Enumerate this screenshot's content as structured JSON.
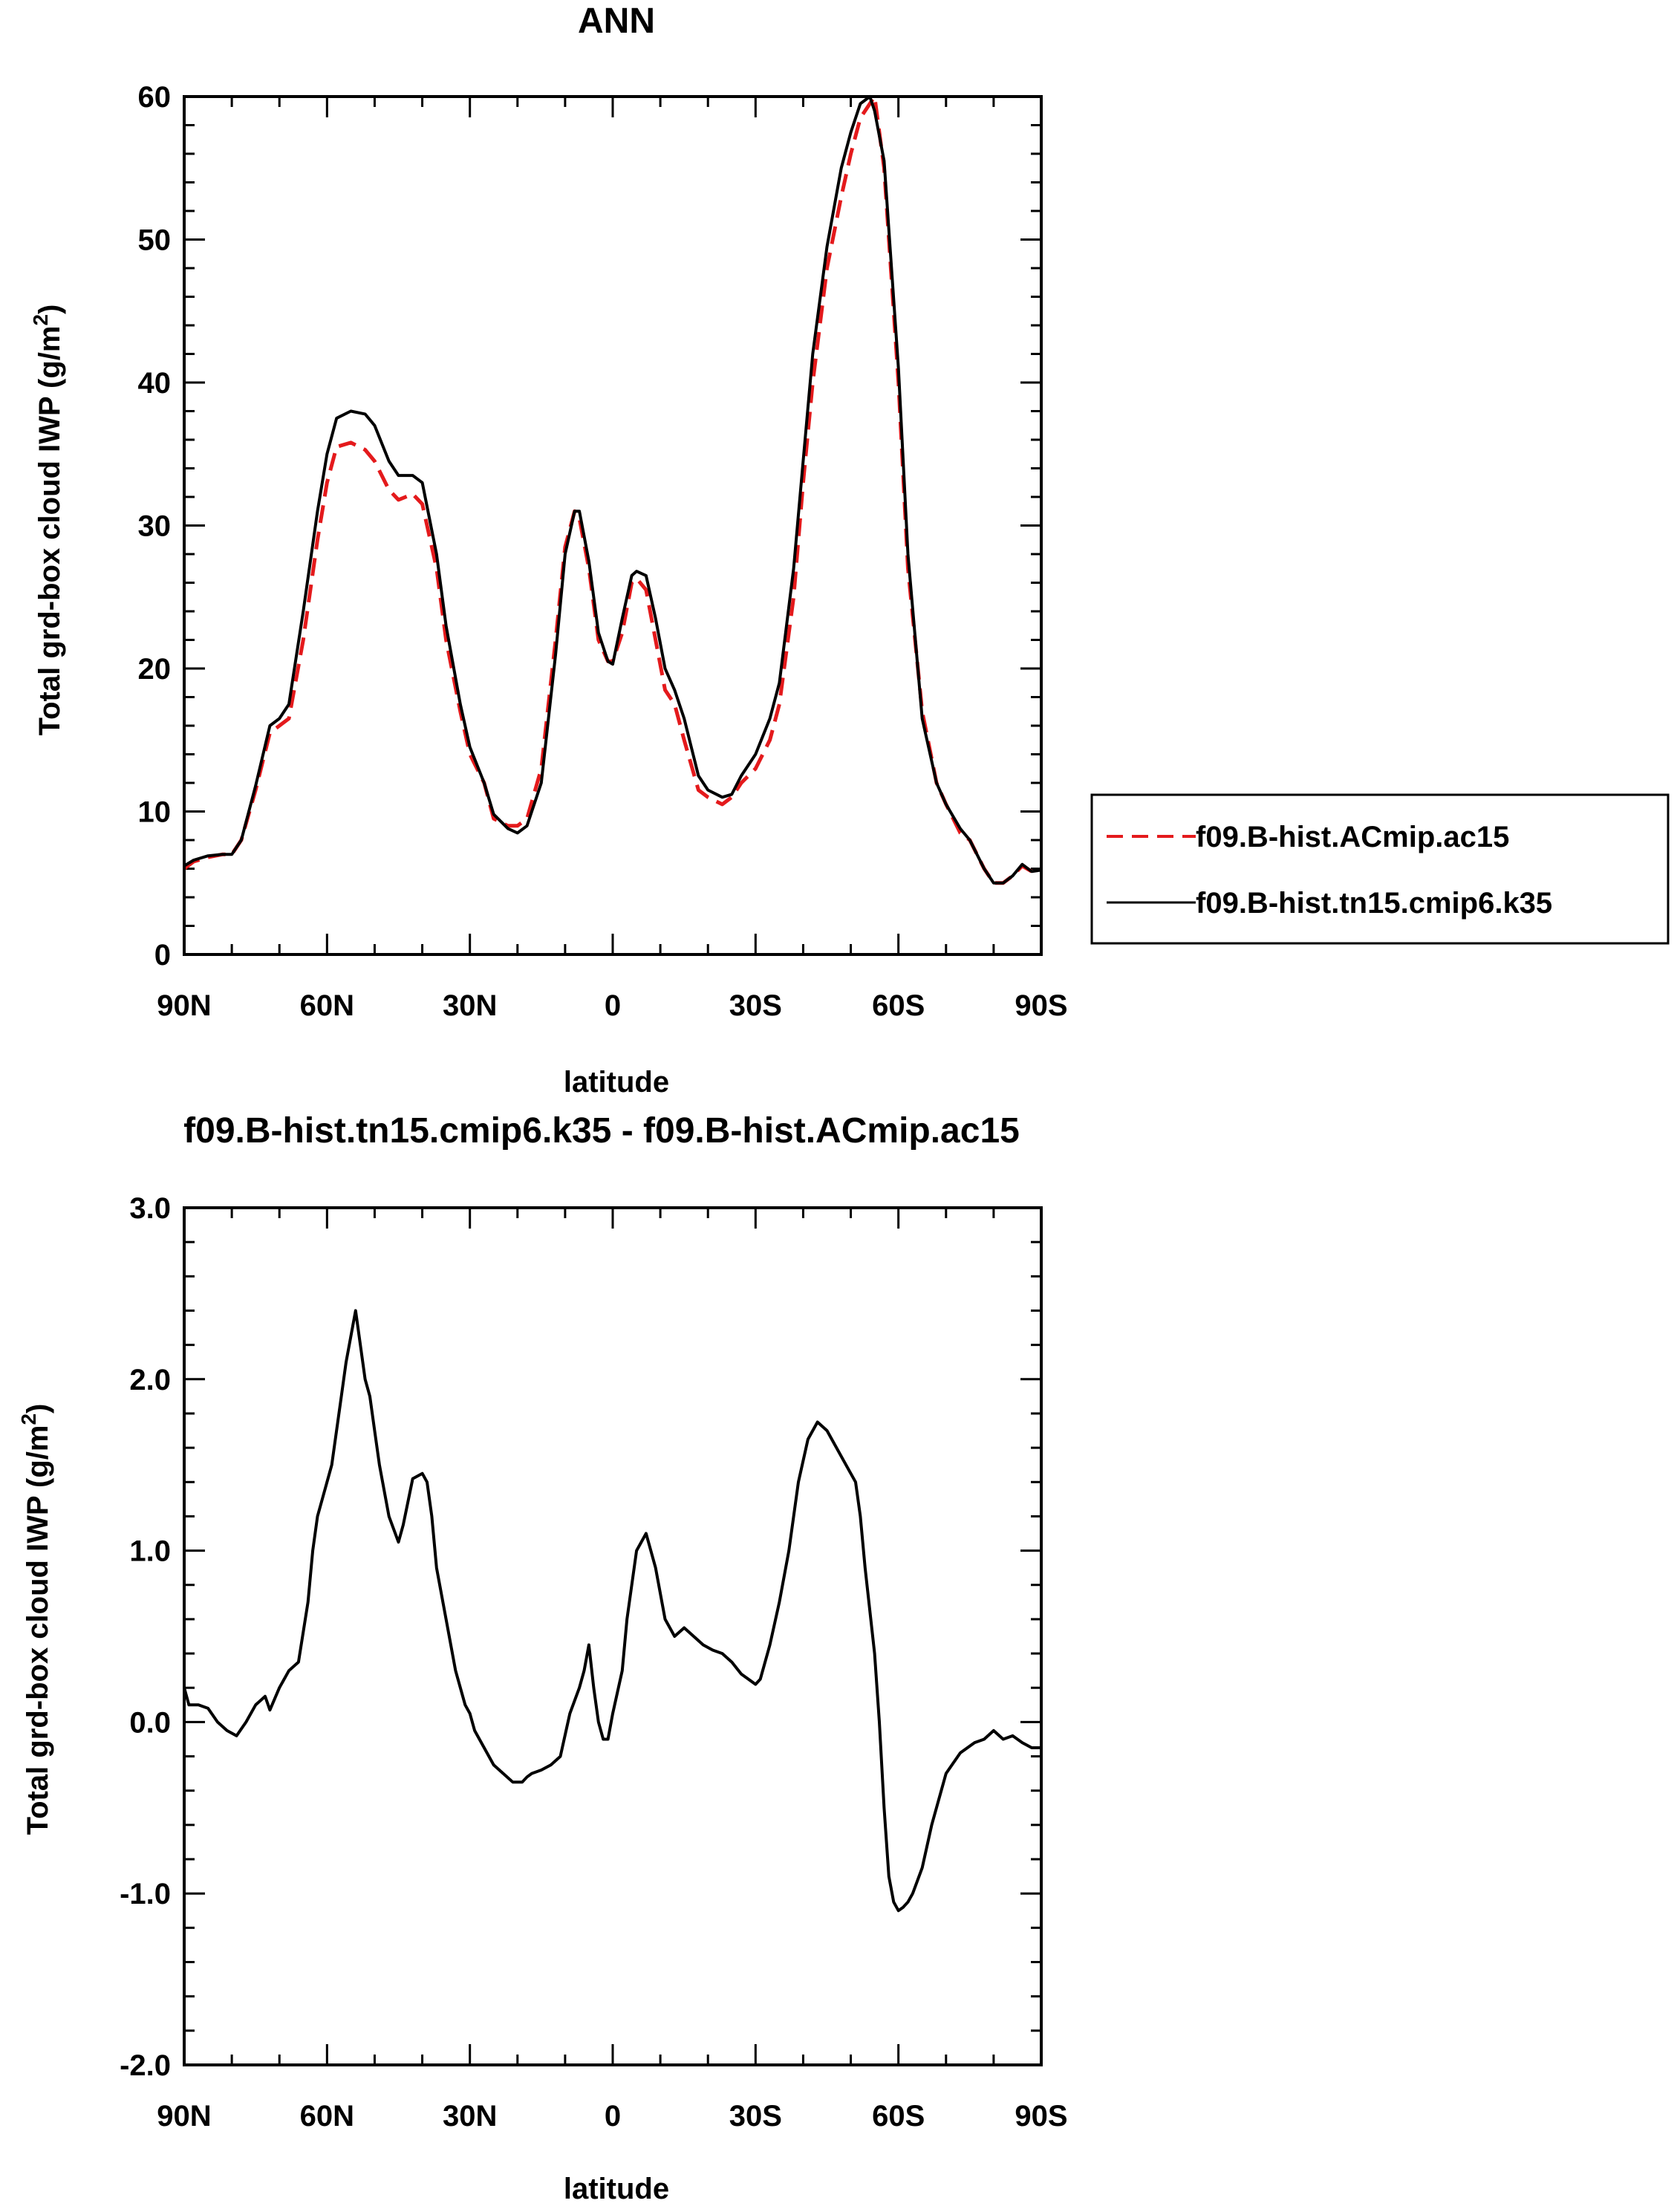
{
  "chart_data": [
    {
      "type": "line",
      "title": "ANN",
      "xlabel": "latitude",
      "ylabel_prefix": "Total grd-box cloud IWP (g/m",
      "ylabel_sup": "2",
      "ylabel_suffix": ")",
      "ylim": [
        0,
        60
      ],
      "xlim": [
        -90,
        90
      ],
      "x_ticks": [
        -90,
        -60,
        -30,
        0,
        30,
        60,
        90
      ],
      "x_tick_labels": [
        "90N",
        "60N",
        "30N",
        "0",
        "30S",
        "60S",
        "90S"
      ],
      "y_ticks": [
        0,
        10,
        20,
        30,
        40,
        50,
        60
      ],
      "y_tick_labels": [
        "0",
        "10",
        "20",
        "30",
        "40",
        "50",
        "60"
      ],
      "legend": {
        "placement": "outside-right"
      },
      "series": [
        {
          "name": "f09.B-hist.ACmip.ac15",
          "color": "#e41a1c",
          "dash": "dashed",
          "x": [
            -90,
            -88,
            -85,
            -82,
            -80,
            -78,
            -75,
            -72,
            -70,
            -68,
            -65,
            -62,
            -60,
            -58,
            -55,
            -52,
            -50,
            -47,
            -45,
            -42,
            -40,
            -37,
            -35,
            -32,
            -30,
            -27,
            -25,
            -22,
            -20,
            -18,
            -15,
            -12,
            -10,
            -8,
            -7,
            -5,
            -3,
            -1,
            0,
            2,
            4,
            5,
            7,
            9,
            11,
            13,
            15,
            18,
            20,
            23,
            25,
            27,
            30,
            33,
            35,
            38,
            40,
            42,
            45,
            48,
            50,
            52,
            54,
            55,
            57,
            60,
            62,
            65,
            68,
            70,
            73,
            75,
            78,
            80,
            82,
            84,
            86,
            88,
            90
          ],
          "y": [
            6.0,
            6.5,
            6.8,
            7.0,
            7.0,
            8.0,
            11.5,
            15.5,
            16.0,
            16.5,
            22.0,
            29.0,
            33.0,
            35.5,
            35.8,
            35.3,
            34.5,
            32.5,
            31.8,
            32.2,
            31.5,
            27.0,
            22.0,
            17.0,
            14.0,
            12.0,
            9.5,
            9.0,
            9.0,
            9.5,
            13.0,
            22.0,
            28.5,
            31.0,
            30.5,
            27.0,
            22.0,
            20.5,
            20.5,
            22.5,
            26.0,
            26.3,
            25.5,
            22.0,
            18.5,
            17.5,
            15.0,
            11.5,
            11.0,
            10.5,
            11.0,
            12.0,
            13.0,
            15.0,
            17.5,
            25.0,
            33.0,
            40.0,
            48.0,
            53.0,
            56.0,
            58.5,
            59.5,
            60.0,
            55.0,
            40.0,
            27.0,
            17.0,
            12.0,
            10.5,
            8.5,
            8.0,
            6.0,
            5.0,
            5.0,
            5.5,
            6.2,
            5.8,
            5.8
          ]
        },
        {
          "name": "f09.B-hist.tn15.cmip6.k35",
          "color": "#000000",
          "dash": "solid",
          "x": [
            -90,
            -88,
            -85,
            -82,
            -80,
            -78,
            -75,
            -72,
            -70,
            -68,
            -65,
            -62,
            -60,
            -58,
            -55,
            -52,
            -50,
            -47,
            -45,
            -42,
            -40,
            -37,
            -35,
            -32,
            -30,
            -27,
            -25,
            -22,
            -20,
            -18,
            -15,
            -12,
            -10,
            -8,
            -7,
            -5,
            -3,
            -1,
            0,
            2,
            4,
            5,
            7,
            9,
            11,
            13,
            15,
            18,
            20,
            23,
            25,
            27,
            30,
            33,
            35,
            38,
            40,
            42,
            45,
            48,
            50,
            52,
            54,
            55,
            57,
            60,
            62,
            65,
            68,
            70,
            73,
            75,
            78,
            80,
            82,
            84,
            86,
            88,
            90
          ],
          "y": [
            6.2,
            6.6,
            6.9,
            7.0,
            7.0,
            8.0,
            11.8,
            16.0,
            16.5,
            17.5,
            24.0,
            31.0,
            35.0,
            37.5,
            38.0,
            37.8,
            37.0,
            34.5,
            33.5,
            33.5,
            33.0,
            28.0,
            23.0,
            17.5,
            14.5,
            12.0,
            9.8,
            8.8,
            8.5,
            9.0,
            12.0,
            21.0,
            28.0,
            31.0,
            31.0,
            27.5,
            22.5,
            20.5,
            20.3,
            23.5,
            26.5,
            26.8,
            26.5,
            23.5,
            20.0,
            18.5,
            16.5,
            12.5,
            11.5,
            11.0,
            11.2,
            12.5,
            14.0,
            16.5,
            19.0,
            27.0,
            34.5,
            42.0,
            49.5,
            55.0,
            57.5,
            59.5,
            60.0,
            59.0,
            55.5,
            41.0,
            28.0,
            16.5,
            12.0,
            10.5,
            8.8,
            8.0,
            6.0,
            5.0,
            5.0,
            5.5,
            6.3,
            5.8,
            5.9
          ]
        }
      ]
    },
    {
      "type": "line",
      "title": "f09.B-hist.tn15.cmip6.k35 - f09.B-hist.ACmip.ac15",
      "xlabel": "latitude",
      "ylabel_prefix": "Total grd-box cloud IWP (g/m",
      "ylabel_sup": "2",
      "ylabel_suffix": ")",
      "ylim": [
        -2.0,
        3.0
      ],
      "xlim": [
        -90,
        90
      ],
      "x_ticks": [
        -90,
        -60,
        -30,
        0,
        30,
        60,
        90
      ],
      "x_tick_labels": [
        "90N",
        "60N",
        "30N",
        "0",
        "30S",
        "60S",
        "90S"
      ],
      "y_ticks": [
        -2.0,
        -1.0,
        0.0,
        1.0,
        2.0,
        3.0
      ],
      "y_tick_labels": [
        "-2.0",
        "-1.0",
        "0.0",
        "1.0",
        "2.0",
        "3.0"
      ],
      "series": [
        {
          "color": "#000000",
          "dash": "solid",
          "x": [
            -90,
            -89,
            -87,
            -85,
            -83,
            -81,
            -79,
            -77,
            -75,
            -73,
            -72,
            -70,
            -68,
            -66,
            -64,
            -63,
            -62,
            -61,
            -60,
            -59,
            -57,
            -56,
            -54,
            -53,
            -52,
            -51,
            -50,
            -49,
            -47,
            -45,
            -44,
            -42,
            -40,
            -39,
            -38,
            -37,
            -35,
            -33,
            -31,
            -30,
            -29,
            -27,
            -25,
            -23,
            -21,
            -19,
            -18,
            -17,
            -15,
            -13,
            -11,
            -9,
            -7,
            -6,
            -5,
            -4,
            -3,
            -2,
            -1,
            0,
            2,
            3,
            5,
            7,
            9,
            11,
            13,
            15,
            17,
            19,
            21,
            23,
            25,
            27,
            30,
            31,
            33,
            35,
            37,
            39,
            41,
            43,
            45,
            47,
            49,
            51,
            52,
            53,
            55,
            56,
            57,
            58,
            59,
            60,
            61,
            62,
            63,
            65,
            67,
            70,
            73,
            76,
            78,
            80,
            82,
            84,
            86,
            88,
            90
          ],
          "y": [
            0.2,
            0.1,
            0.1,
            0.08,
            0.0,
            -0.05,
            -0.08,
            0.0,
            0.1,
            0.15,
            0.07,
            0.2,
            0.3,
            0.35,
            0.7,
            1.0,
            1.2,
            1.3,
            1.4,
            1.5,
            1.9,
            2.1,
            2.4,
            2.2,
            2.0,
            1.9,
            1.7,
            1.5,
            1.2,
            1.05,
            1.15,
            1.42,
            1.45,
            1.4,
            1.2,
            0.9,
            0.6,
            0.3,
            0.1,
            0.05,
            -0.05,
            -0.15,
            -0.25,
            -0.3,
            -0.35,
            -0.35,
            -0.32,
            -0.3,
            -0.28,
            -0.25,
            -0.2,
            0.05,
            0.2,
            0.3,
            0.45,
            0.2,
            0.0,
            -0.1,
            -0.1,
            0.05,
            0.3,
            0.6,
            1.0,
            1.1,
            0.9,
            0.6,
            0.5,
            0.55,
            0.5,
            0.45,
            0.42,
            0.4,
            0.35,
            0.28,
            0.22,
            0.25,
            0.45,
            0.7,
            1.0,
            1.4,
            1.65,
            1.75,
            1.7,
            1.6,
            1.5,
            1.4,
            1.2,
            0.9,
            0.4,
            0.0,
            -0.5,
            -0.9,
            -1.05,
            -1.1,
            -1.08,
            -1.05,
            -1.0,
            -0.85,
            -0.6,
            -0.3,
            -0.18,
            -0.12,
            -0.1,
            -0.05,
            -0.1,
            -0.08,
            -0.12,
            -0.15,
            -0.15
          ]
        }
      ]
    }
  ]
}
